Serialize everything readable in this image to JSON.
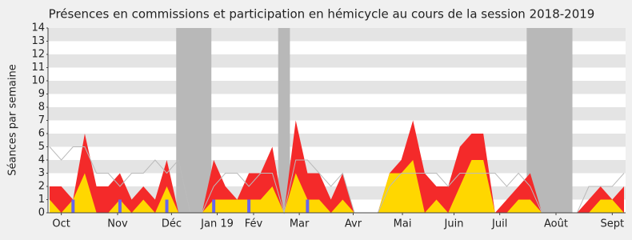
{
  "chart_data": {
    "type": "area",
    "title": "Présences en commissions et participation en hémicycle au cours de la session 2018-2019",
    "y_label": "Séances par semaine",
    "x": [
      0,
      1,
      2,
      3,
      4,
      5,
      6,
      7,
      8,
      9,
      10,
      11,
      12,
      13,
      14,
      15,
      16,
      17,
      18,
      19,
      20,
      21,
      22,
      23,
      24,
      25,
      26,
      27,
      28,
      29,
      30,
      31,
      32,
      33,
      34,
      35,
      36,
      37,
      38,
      39,
      40,
      41,
      42,
      43,
      44,
      45,
      46,
      47,
      48,
      49
    ],
    "xlim": [
      0,
      49
    ],
    "xticks": [
      {
        "value": 1,
        "label": "Oct"
      },
      {
        "value": 5.8,
        "label": "Nov"
      },
      {
        "value": 10.4,
        "label": "Déc"
      },
      {
        "value": 14.3,
        "label": "Jan 19"
      },
      {
        "value": 17.4,
        "label": "Fév"
      },
      {
        "value": 21.3,
        "label": "Mar"
      },
      {
        "value": 25.9,
        "label": "Avr"
      },
      {
        "value": 30.1,
        "label": "Mai"
      },
      {
        "value": 34.5,
        "label": "Juin"
      },
      {
        "value": 38.4,
        "label": "Juil"
      },
      {
        "value": 43.2,
        "label": "Août"
      },
      {
        "value": 48,
        "label": "Sept"
      }
    ],
    "ylim": [
      0,
      14
    ],
    "yticks": [
      0,
      1,
      2,
      3,
      4,
      5,
      6,
      7,
      8,
      9,
      10,
      11,
      12,
      13,
      14
    ],
    "shaded_periods": [
      [
        10.8,
        13.8
      ],
      [
        19.5,
        20.5
      ],
      [
        40.7,
        44.6
      ]
    ],
    "shade_color": "#b8b8b8",
    "series": [
      {
        "color": "#f42a2a",
        "values": [
          2,
          2,
          1,
          6,
          2,
          2,
          3,
          1,
          2,
          1,
          4,
          0,
          0,
          0,
          4,
          2,
          1,
          3,
          3,
          5,
          0,
          7,
          3,
          3,
          1,
          3,
          0,
          0,
          0,
          3,
          4,
          7,
          3,
          2,
          2,
          5,
          6,
          6,
          0,
          1,
          2,
          3,
          0,
          0,
          0,
          0,
          1,
          2,
          1,
          2
        ]
      },
      {
        "color": "#ffd700",
        "values": [
          1,
          0,
          1,
          3,
          0,
          0,
          1,
          0,
          1,
          0,
          2,
          0,
          0,
          0,
          1,
          1,
          1,
          1,
          1,
          2,
          0,
          3,
          1,
          1,
          0,
          1,
          0,
          0,
          0,
          3,
          3,
          4,
          0,
          1,
          0,
          2,
          4,
          4,
          0,
          0,
          1,
          1,
          0,
          0,
          0,
          0,
          0,
          1,
          1,
          0
        ]
      },
      {
        "color": "#bbbbbb",
        "style": "line",
        "values": [
          5,
          4,
          5,
          5,
          3,
          3,
          2,
          3,
          3,
          4,
          3,
          4,
          0,
          0,
          2,
          3,
          3,
          2,
          3,
          3,
          0,
          4,
          4,
          3,
          2,
          3,
          0,
          0,
          0,
          2,
          3,
          3,
          3,
          3,
          2,
          3,
          3,
          3,
          3,
          2,
          3,
          2,
          0,
          0,
          0,
          0,
          2,
          2,
          2,
          3
        ]
      },
      {
        "color": "#6666ee",
        "style": "bars",
        "values": [
          0,
          0,
          1,
          0,
          0,
          0,
          1,
          0,
          0,
          0,
          1,
          0,
          0,
          0,
          1,
          0,
          0,
          1,
          0,
          0,
          0,
          0,
          1,
          0,
          0,
          0,
          0,
          0,
          0,
          0,
          0,
          0,
          0,
          0,
          0,
          0,
          0,
          0,
          0,
          0,
          0,
          0,
          0,
          0,
          0,
          0,
          0,
          0,
          0,
          0
        ]
      }
    ]
  }
}
